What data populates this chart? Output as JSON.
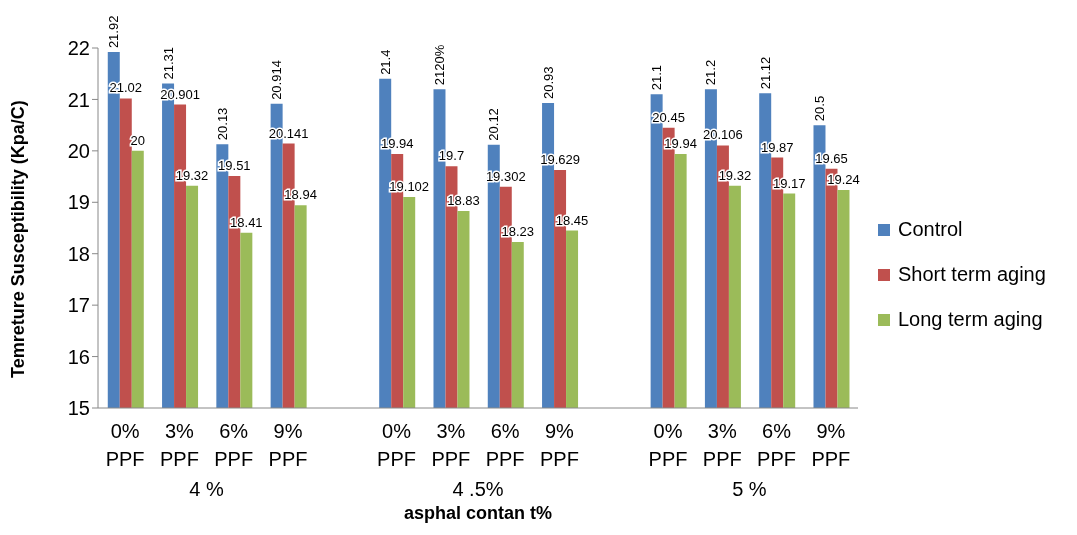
{
  "chart_data": {
    "type": "bar",
    "xlabel": "asphal contan t%",
    "ylabel": "Temreture Susceptibility (Kpa/C)",
    "categories": [
      "0% PPF",
      "3% PPF",
      "6% PPF",
      "9% PPF",
      null,
      "0% PPF",
      "3% PPF",
      "6% PPF",
      "9% PPF",
      null,
      "0% PPF",
      "3% PPF",
      "6% PPF",
      "9% PPF"
    ],
    "series": [
      {
        "name": "Control",
        "color": "#4f81bd",
        "values": [
          21.92,
          21.31,
          20.13,
          20.914,
          null,
          21.4,
          21.2,
          20.12,
          20.93,
          null,
          21.1,
          21.2,
          21.12,
          20.5
        ],
        "value_labels": [
          "21.92",
          "21.31",
          "20.13",
          "20.914",
          null,
          "21.4",
          "2120%",
          "20.12",
          "20.93",
          null,
          "21.1",
          "21.2",
          "21.12",
          "20.5"
        ]
      },
      {
        "name": "Short term aging",
        "color": "#c0504d",
        "values": [
          21.02,
          20.901,
          19.51,
          20.141,
          null,
          19.94,
          19.7,
          19.302,
          19.629,
          null,
          20.45,
          20.106,
          19.87,
          19.65
        ],
        "value_labels": [
          "21.02",
          "20.901",
          "19.51",
          "20.141",
          null,
          "19.94",
          "19.7",
          "19.302",
          "19.629",
          null,
          "20.45",
          "20.106",
          "19.87",
          "19.65"
        ]
      },
      {
        "name": "Long term aging",
        "color": "#9bbb59",
        "values": [
          20,
          19.32,
          18.41,
          18.94,
          null,
          19.102,
          18.83,
          18.23,
          18.45,
          null,
          19.94,
          19.32,
          19.17,
          19.24
        ],
        "value_labels": [
          "20",
          "19.32",
          "18.41",
          "18.94",
          null,
          "19.102",
          "18.83",
          "18.23",
          "18.45",
          null,
          "19.94",
          "19.32",
          "19.17",
          "19.24"
        ]
      }
    ],
    "ylim": [
      15,
      22
    ],
    "yticks": [
      15,
      16,
      17,
      18,
      19,
      20,
      21,
      22
    ],
    "grid": false,
    "legend": "right",
    "annotations": [
      "4 %",
      "4 .5%",
      "5 %"
    ]
  }
}
